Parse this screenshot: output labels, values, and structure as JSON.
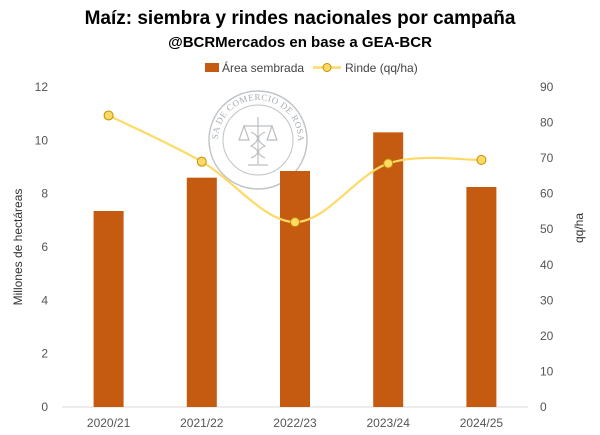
{
  "chart_data": {
    "type": "bar",
    "title": "Maíz: siembra y rindes nacionales por campaña",
    "subtitle": "@BCRMercados en base a GEA-BCR",
    "categories": [
      "2020/21",
      "2021/22",
      "2022/23",
      "2023/24",
      "2024/25"
    ],
    "series": [
      {
        "name": "Área sembrada",
        "type": "bar",
        "axis": "left",
        "color": "#C55A11",
        "values": [
          7.35,
          8.6,
          8.85,
          10.3,
          8.25
        ]
      },
      {
        "name": "Rinde (qq/ha)",
        "type": "line",
        "axis": "right",
        "color": "#FFD966",
        "marker_fill": "#FFD966",
        "marker_stroke": "#BF9000",
        "smooth": true,
        "values": [
          82,
          69,
          52,
          68.5,
          69.5
        ]
      }
    ],
    "ylabel": "Millones de hectáreas",
    "ylabel_right": "qq/ha",
    "ylim": [
      0,
      12
    ],
    "yticks": [
      "0",
      "2",
      "4",
      "6",
      "8",
      "10",
      "12"
    ],
    "ylim_right": [
      0,
      90
    ],
    "yticks_right": [
      "0",
      "10",
      "20",
      "30",
      "40",
      "50",
      "60",
      "70",
      "80",
      "90"
    ],
    "grid": false,
    "legend_position": "top-center",
    "watermark": "BOLSA DE COMERCIO DE ROSARIO"
  }
}
